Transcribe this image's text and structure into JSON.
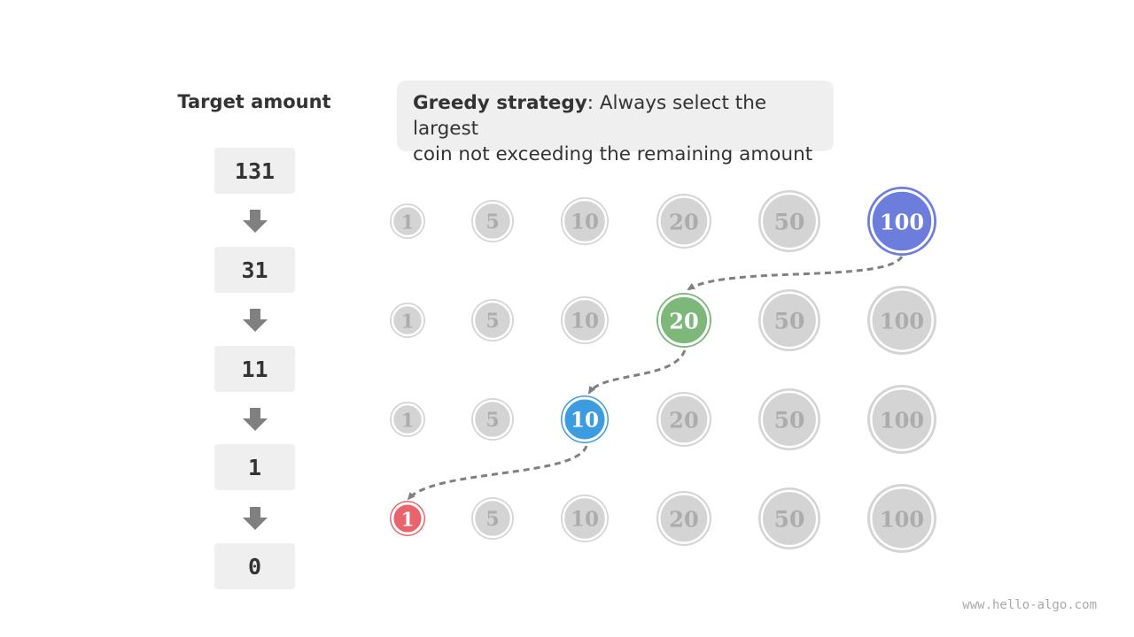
{
  "target_title": "Target amount",
  "amounts": [
    "131",
    "31",
    "11",
    "1",
    "0"
  ],
  "strategy": {
    "bold": "Greedy strategy",
    "line1": ": Always select the largest",
    "line2": "coin not exceeding the remaining amount"
  },
  "coin_denominations": [
    "1",
    "5",
    "10",
    "20",
    "50",
    "100"
  ],
  "rows": [
    {
      "selected": "100",
      "selected_color": "#6c7ddb"
    },
    {
      "selected": "20",
      "selected_color": "#7db87a"
    },
    {
      "selected": "10",
      "selected_color": "#3d9ce0"
    },
    {
      "selected": "1",
      "selected_color": "#e8636c"
    }
  ],
  "colors": {
    "inactive_fill": "#d4d4d4",
    "inactive_text": "#acacac",
    "arrow": "#808080",
    "box_bg": "#efefef"
  },
  "watermark": "www.hello-algo.com"
}
